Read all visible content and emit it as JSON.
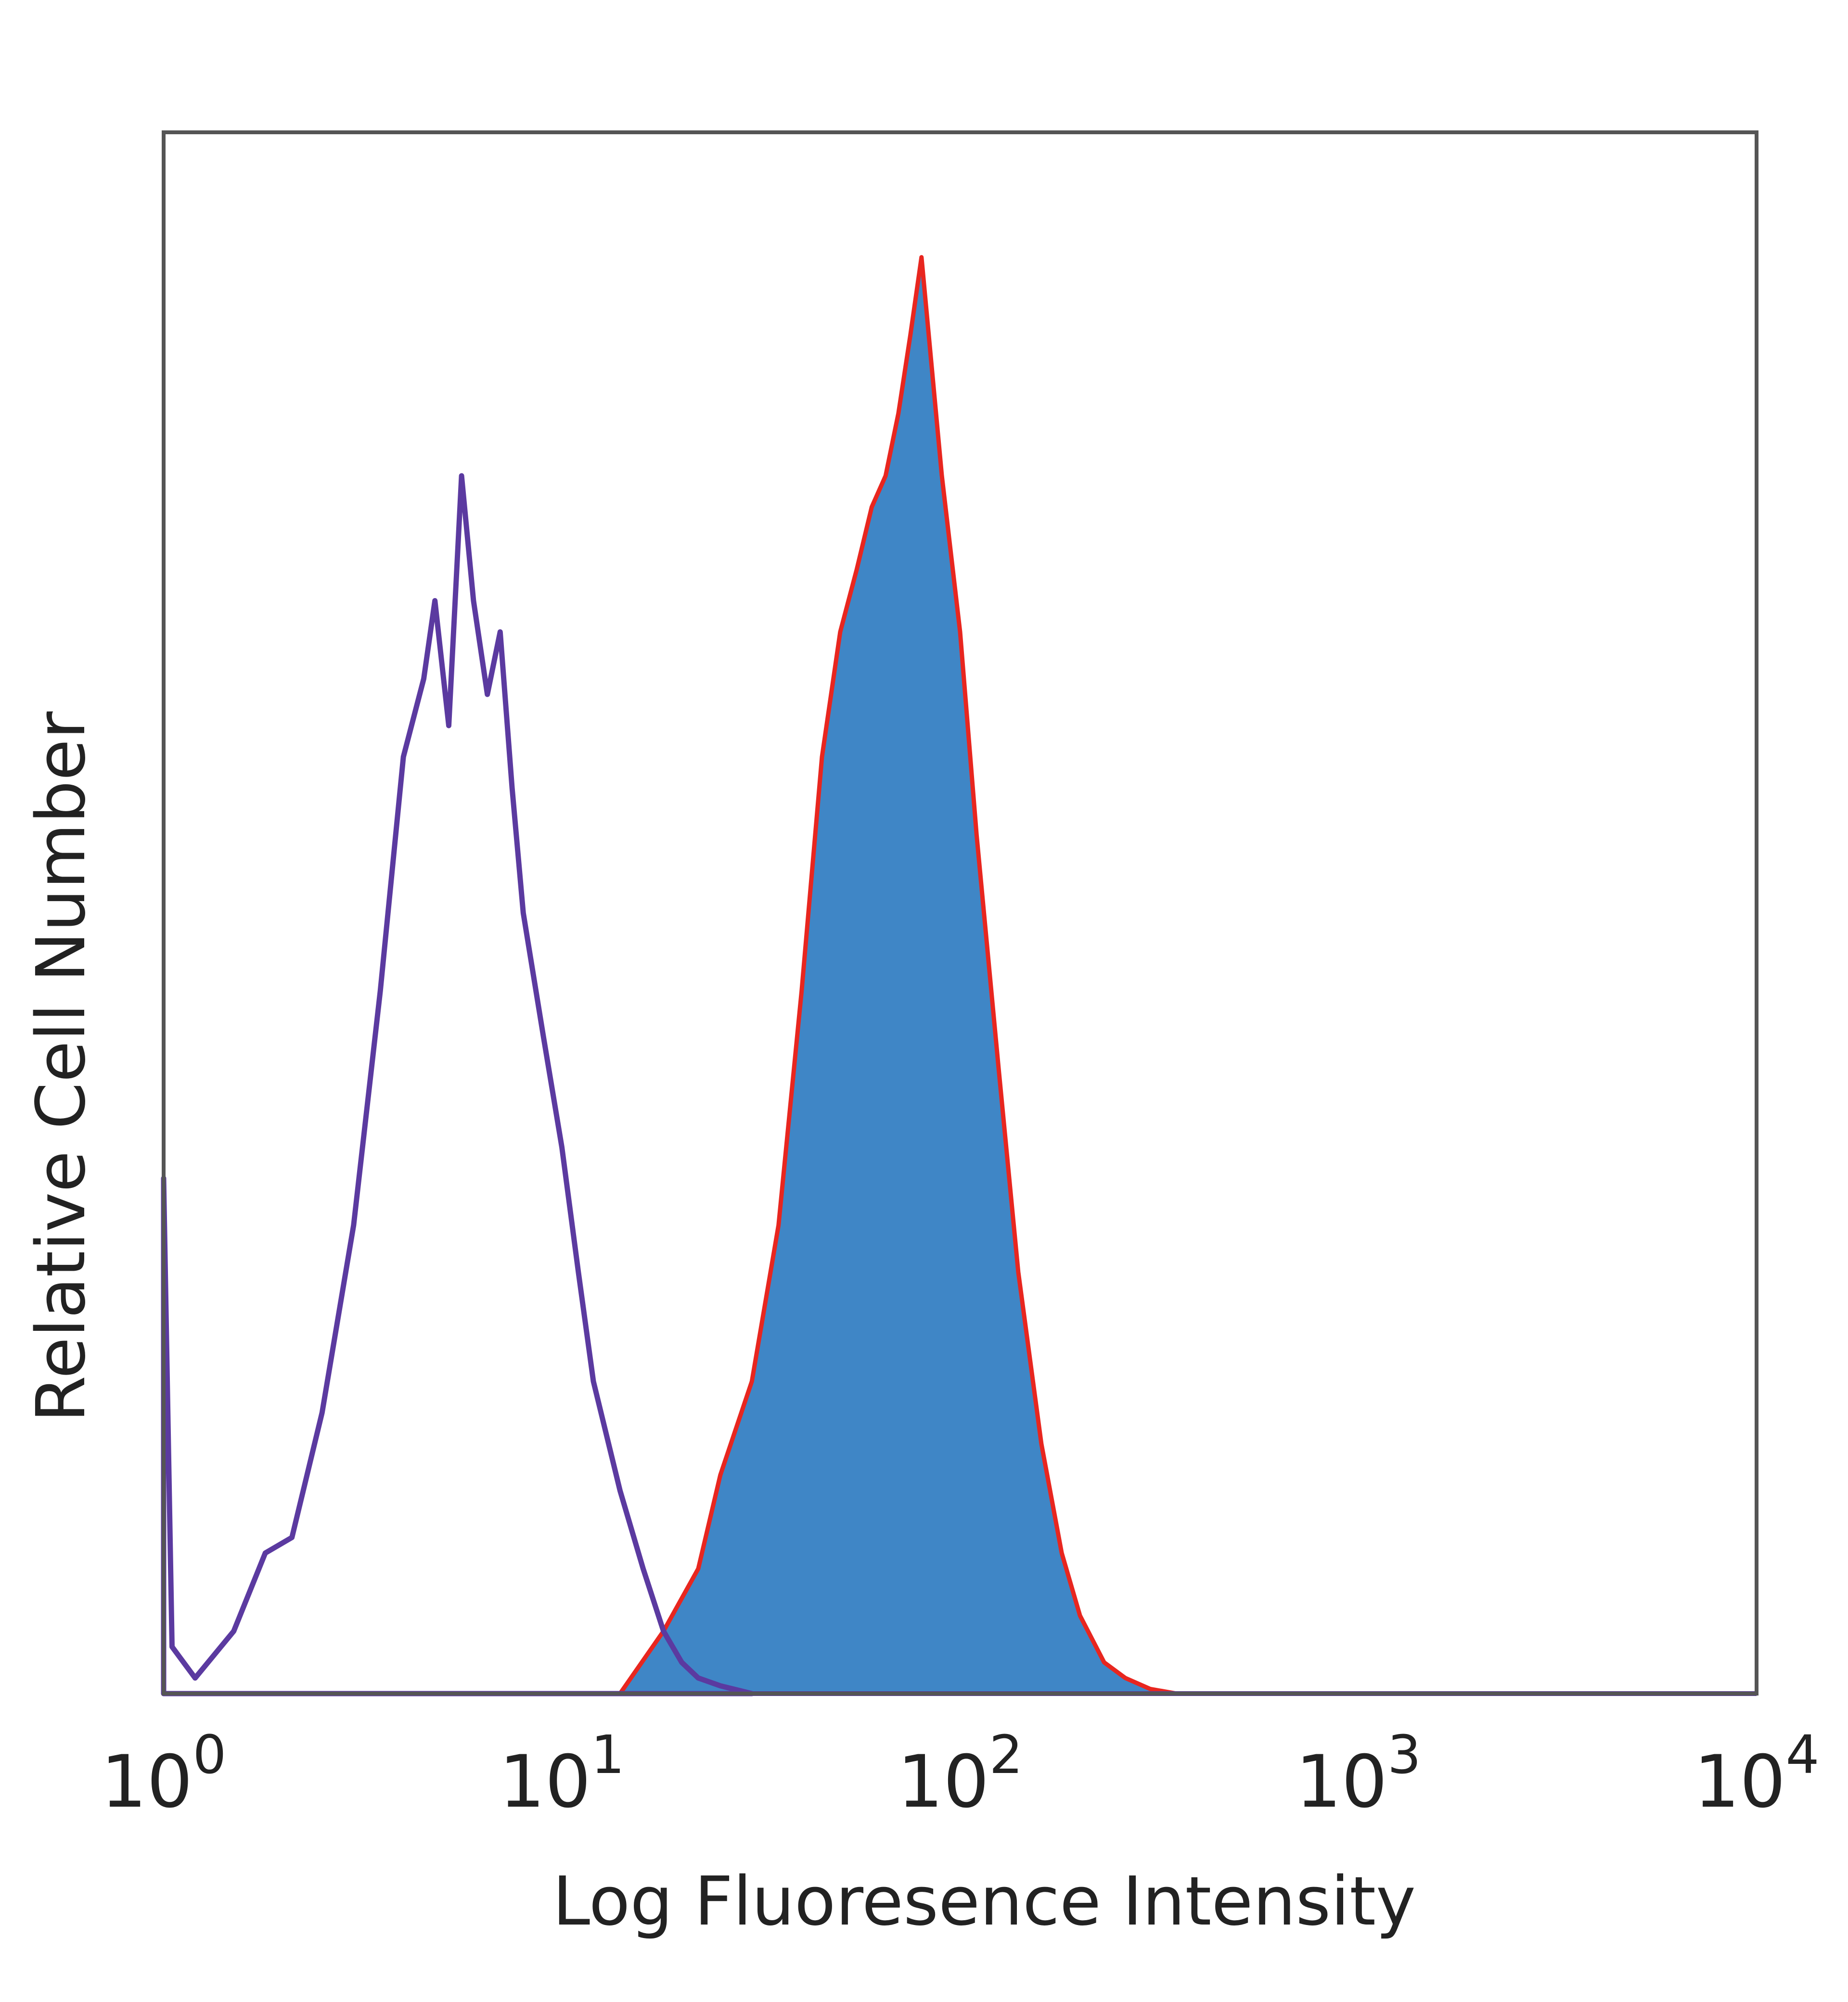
{
  "colors": {
    "filled_fill": "#3f86c6",
    "filled_outline": "#e8261f",
    "open_outline": "#5b3aa0",
    "frame": "#555555"
  },
  "chart_data": {
    "type": "area",
    "title": "",
    "xlabel": "Log Fluoresence Intensity",
    "ylabel": "Relative Cell Number",
    "x_scale": "log",
    "xlim": [
      1,
      10000
    ],
    "ylim": [
      0,
      1
    ],
    "grid": false,
    "legend": "none",
    "x_ticks": [
      {
        "value": 1,
        "base": "10",
        "exp": "0"
      },
      {
        "value": 10,
        "base": "10",
        "exp": "1"
      },
      {
        "value": 100,
        "base": "10",
        "exp": "2"
      },
      {
        "value": 1000,
        "base": "10",
        "exp": "3"
      },
      {
        "value": 10000,
        "base": "10",
        "exp": "4"
      }
    ],
    "series": [
      {
        "style": "filled",
        "x": [
          14,
          18,
          22,
          25,
          30,
          35,
          40,
          45,
          50,
          55,
          60,
          65,
          70,
          75,
          80,
          90,
          100,
          110,
          125,
          140,
          160,
          180,
          200,
          230,
          260,
          300,
          350
        ],
        "y": [
          0.0,
          0.04,
          0.08,
          0.14,
          0.2,
          0.3,
          0.45,
          0.6,
          0.68,
          0.72,
          0.76,
          0.78,
          0.82,
          0.87,
          0.92,
          0.78,
          0.68,
          0.55,
          0.4,
          0.27,
          0.16,
          0.09,
          0.05,
          0.02,
          0.01,
          0.003,
          0.0
        ]
      },
      {
        "style": "outline",
        "x": [
          1.0,
          1.05,
          1.2,
          1.5,
          1.8,
          2.1,
          2.5,
          3.0,
          3.5,
          4.0,
          4.5,
          4.8,
          5.2,
          5.6,
          6.0,
          6.5,
          7.0,
          7.5,
          8.0,
          9.0,
          10,
          11,
          12,
          14,
          16,
          18,
          20,
          22,
          25,
          30
        ],
        "y": [
          0.33,
          0.03,
          0.01,
          0.04,
          0.09,
          0.1,
          0.18,
          0.3,
          0.45,
          0.6,
          0.65,
          0.7,
          0.62,
          0.78,
          0.7,
          0.64,
          0.68,
          0.58,
          0.5,
          0.42,
          0.35,
          0.27,
          0.2,
          0.13,
          0.08,
          0.04,
          0.02,
          0.01,
          0.005,
          0.0
        ]
      }
    ]
  }
}
